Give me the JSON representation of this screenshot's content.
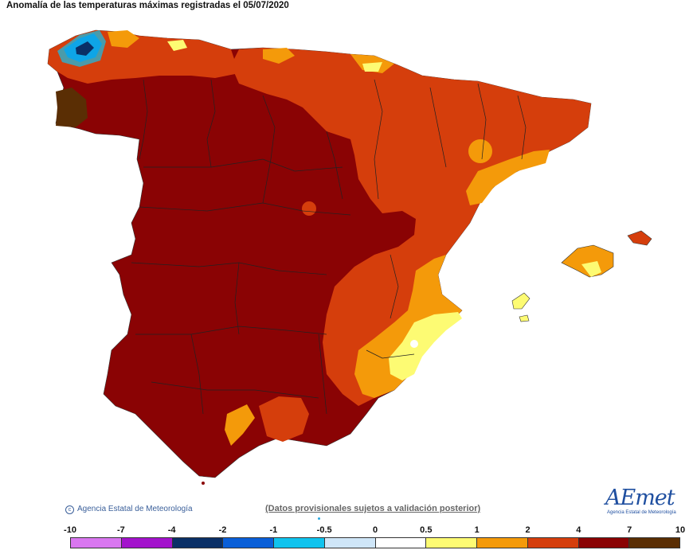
{
  "title": "Anomalía de las temperaturas máximas registradas el 05/07/2020",
  "credit": "Agencia Estatal de Meteorología",
  "disclaimer": "(Datos provisionales sujetos a validación posterior)",
  "logo": {
    "word": "AEmet",
    "sub": "Agencia Estatal de Meteorología"
  },
  "legend": {
    "ticks": [
      "-10",
      "-7",
      "-4",
      "-2",
      "-1",
      "-0.5",
      "0",
      "0.5",
      "1",
      "2",
      "4",
      "7",
      "10"
    ],
    "colors": [
      "#d977f0",
      "#a313cc",
      "#0a2f66",
      "#0a5fd8",
      "#10c3ee",
      "#cfe6f8",
      "#ffffff",
      "#fdfb73",
      "#f49a0a",
      "#d53e0c",
      "#8a0304",
      "#5a2e04"
    ]
  },
  "palette": {
    "dark_red": "#8a0304",
    "red_orange": "#d53e0c",
    "orange": "#f49a0a",
    "yellow": "#fdfb73",
    "brown": "#5a2e04"
  }
}
